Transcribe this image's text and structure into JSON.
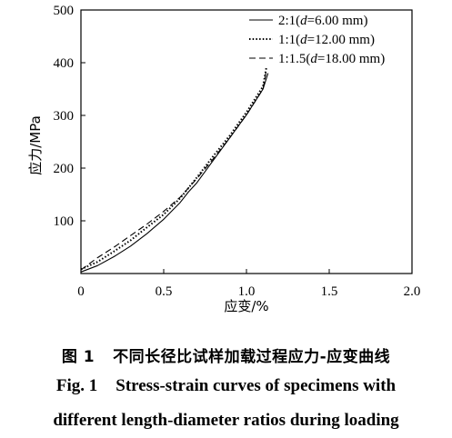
{
  "chart_data": {
    "type": "line",
    "title": "",
    "xlabel": "应变/%",
    "ylabel": "应力/MPa",
    "xlim": [
      0,
      2.0
    ],
    "ylim": [
      0,
      500
    ],
    "xticks": [
      "0",
      "0.5",
      "1.0",
      "1.5",
      "2.0"
    ],
    "yticks": [
      "100",
      "200",
      "300",
      "400",
      "500"
    ],
    "legend_position": "top-right",
    "series": [
      {
        "name": "2:1(d=6.00 mm)",
        "legend_parts": [
          "2:1(",
          "d",
          "=6.00 mm)"
        ],
        "style": "solid",
        "x": [
          0,
          0.1,
          0.2,
          0.3,
          0.4,
          0.5,
          0.6,
          0.65,
          0.7,
          0.8,
          0.9,
          1.0,
          1.1,
          1.13
        ],
        "y": [
          3,
          15,
          32,
          52,
          76,
          103,
          135,
          155,
          172,
          215,
          258,
          301,
          350,
          380
        ]
      },
      {
        "name": "1:1(d=12.00 mm)",
        "legend_parts": [
          "1:1(",
          "d",
          "=12.00 mm)"
        ],
        "style": "dotted",
        "x": [
          0,
          0.1,
          0.2,
          0.3,
          0.4,
          0.5,
          0.6,
          0.7,
          0.8,
          0.9,
          1.0,
          1.1,
          1.12
        ],
        "y": [
          8,
          22,
          42,
          63,
          88,
          112,
          143,
          182,
          223,
          262,
          306,
          355,
          390
        ]
      },
      {
        "name": "1:1.5(d=18.00 mm)",
        "legend_parts": [
          "1:1.5(",
          "d",
          "=18.00 mm)"
        ],
        "style": "dashed",
        "x": [
          0,
          0.1,
          0.2,
          0.3,
          0.4,
          0.5,
          0.6,
          0.7,
          0.8,
          0.9,
          1.0,
          1.1,
          1.12
        ],
        "y": [
          7,
          30,
          50,
          72,
          94,
          118,
          145,
          180,
          218,
          258,
          301,
          350,
          385
        ]
      }
    ]
  },
  "caption": {
    "cn_label": "图 1",
    "cn_text": "不同长径比试样加载过程应力-应变曲线",
    "en_label": "Fig. 1",
    "en_line1": "Stress-strain curves of specimens with",
    "en_line2": "different length-diameter ratios during loading"
  }
}
